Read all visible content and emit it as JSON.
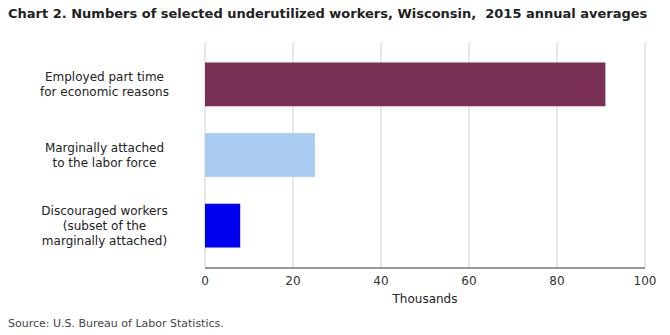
{
  "chart_data": {
    "type": "bar",
    "orientation": "horizontal",
    "title": "Chart 2. Numbers of selected underutilized workers, Wisconsin,  2015 annual averages",
    "categories": [
      "Discouraged workers\n(subset of the\nmarginally attached)",
      "Marginally attached\nto the labor force",
      "Employed part time\nfor economic reasons"
    ],
    "values": [
      8,
      25,
      91
    ],
    "colors": [
      "#0000ee",
      "#aaccf0",
      "#7a3055"
    ],
    "xlabel": "Thousands",
    "xlim": [
      0,
      100
    ],
    "xticks": [
      0,
      20,
      40,
      60,
      80,
      100
    ],
    "grid": true,
    "source": "Source: U.S. Bureau of Labor Statistics."
  }
}
